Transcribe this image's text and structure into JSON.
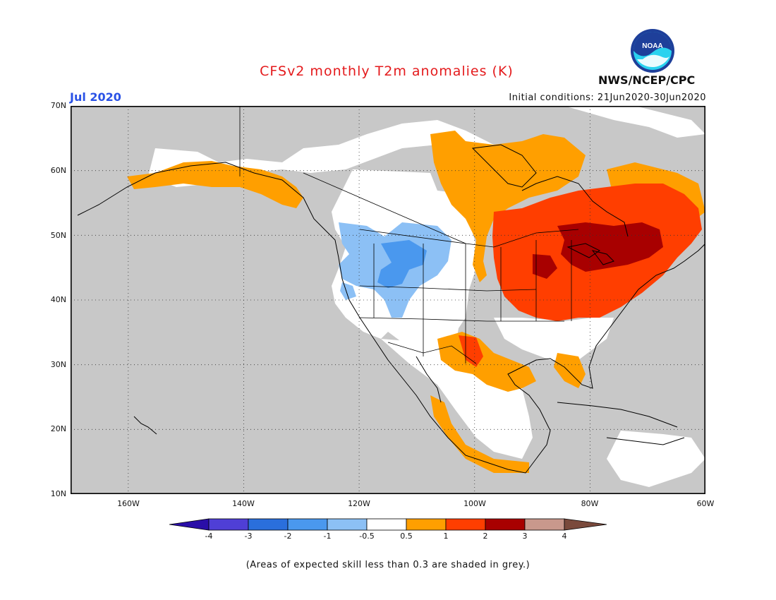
{
  "title": "CFSv2 monthly T2m anomalies (K)",
  "month": "Jul 2020",
  "initial_conditions": "Initial conditions: 21Jun2020-30Jun2020",
  "organization": "NWS/NCEP/CPC",
  "logo_text": "NOAA",
  "lat_labels": [
    "70N",
    "60N",
    "50N",
    "40N",
    "30N",
    "20N",
    "10N"
  ],
  "lon_labels": [
    "160W",
    "140W",
    "120W",
    "100W",
    "80W",
    "60W"
  ],
  "colorbar": {
    "labels": [
      "-4",
      "-3",
      "-2",
      "-1",
      "-0.5",
      "0.5",
      "1",
      "2",
      "3",
      "4"
    ],
    "colors": [
      "#2a0ea8",
      "#4f3fd6",
      "#2a6fdc",
      "#4a98ee",
      "#8cc0f5",
      "#ffffff",
      "#ff9f00",
      "#ff3e00",
      "#a80000",
      "#c9988c",
      "#7a4a3c"
    ]
  },
  "footnote": "(Areas of expected skill less than 0.3 are shaded in grey.)",
  "colors": {
    "no_skill": "#c8c8c8",
    "neutral": "#ffffff",
    "warm_05_1": "#ff9f00",
    "warm_1_2": "#ff3e00",
    "warm_2_3": "#a80000",
    "cool_05_1": "#8cc0f5",
    "cool_1_2": "#4a98ee"
  }
}
